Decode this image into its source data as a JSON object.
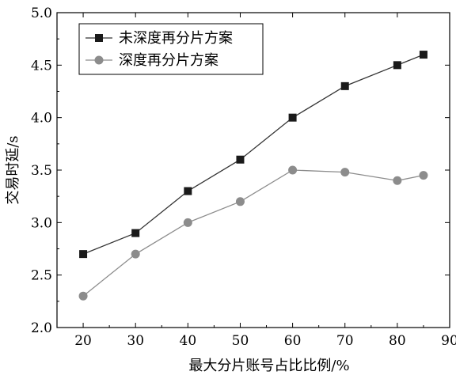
{
  "chart_data": {
    "type": "line",
    "title": "",
    "xlabel": "最大分片账号占比比例/%",
    "ylabel": "交易时延/s",
    "xlim": [
      15,
      90
    ],
    "ylim": [
      2.0,
      5.0
    ],
    "xticks": [
      20,
      30,
      40,
      50,
      60,
      70,
      80,
      90
    ],
    "yticks": [
      2.0,
      2.5,
      3.0,
      3.5,
      4.0,
      4.5,
      5.0
    ],
    "grid": false,
    "legend_position": "top-left",
    "series": [
      {
        "name": "未深度再分片方案",
        "marker": "square",
        "color": "#1a1a1a",
        "line_color": "#333333",
        "x": [
          20,
          30,
          40,
          50,
          60,
          70,
          80,
          85
        ],
        "y": [
          2.7,
          2.9,
          3.3,
          3.6,
          4.0,
          4.3,
          4.5,
          4.6
        ]
      },
      {
        "name": "深度再分片方案",
        "marker": "circle",
        "color": "#8c8c8c",
        "line_color": "#8c8c8c",
        "x": [
          20,
          30,
          40,
          50,
          60,
          70,
          80,
          85
        ],
        "y": [
          2.3,
          2.7,
          3.0,
          3.2,
          3.5,
          3.48,
          3.4,
          3.45
        ]
      }
    ]
  }
}
